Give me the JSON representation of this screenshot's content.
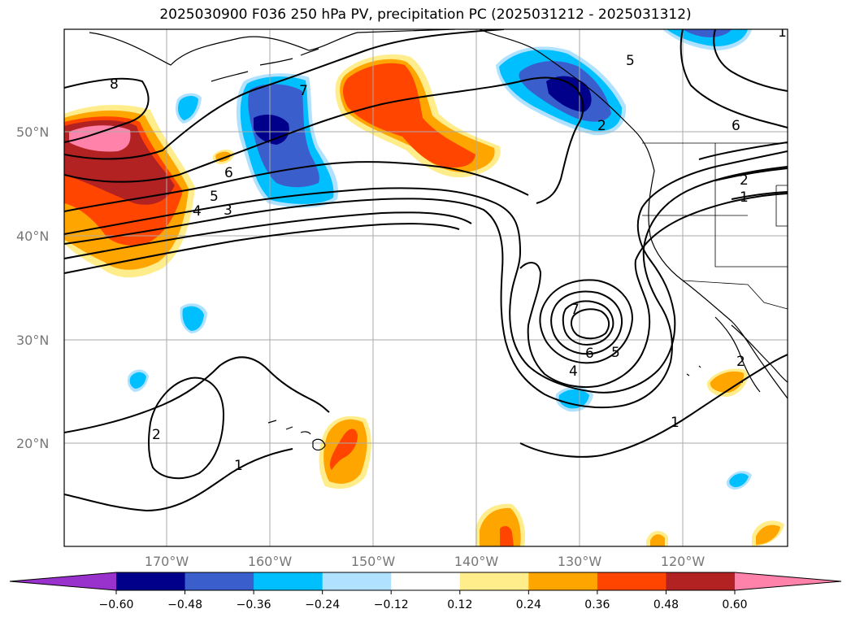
{
  "title": "2025030900 F036 250 hPa PV, precipitation PC (2025031212 - 2025031312)",
  "lat_labels": [
    "50°N",
    "40°N",
    "30°N",
    "20°N"
  ],
  "lon_labels": [
    "170°W",
    "160°W",
    "150°W",
    "140°W",
    "130°W",
    "120°W"
  ],
  "contour_labels": [
    "8",
    "7",
    "6",
    "5",
    "4",
    "3",
    "2",
    "1",
    "7",
    "6",
    "5",
    "4",
    "5",
    "6",
    "2",
    "1",
    "2",
    "1",
    "1",
    "2"
  ],
  "colorbar": {
    "ticks": [
      "−0.60",
      "−0.48",
      "−0.36",
      "−0.24",
      "−0.12",
      "0.12",
      "0.24",
      "0.36",
      "0.48",
      "0.60"
    ],
    "colors": [
      "#9932cc",
      "#00008b",
      "#3a5fcd",
      "#00bfff",
      "#b0e2ff",
      "#ffffff",
      "#ffec8b",
      "#ffa500",
      "#ff4500",
      "#b22222",
      "#ff82ab"
    ]
  },
  "shading_colors": {
    "neg1": "#b0e2ff",
    "neg2": "#00bfff",
    "neg3": "#3a5fcd",
    "neg4": "#00008b",
    "pos1": "#ffec8b",
    "pos2": "#ffa500",
    "pos3": "#ff4500",
    "pos4": "#b22222",
    "pos5": "#ff82ab"
  }
}
